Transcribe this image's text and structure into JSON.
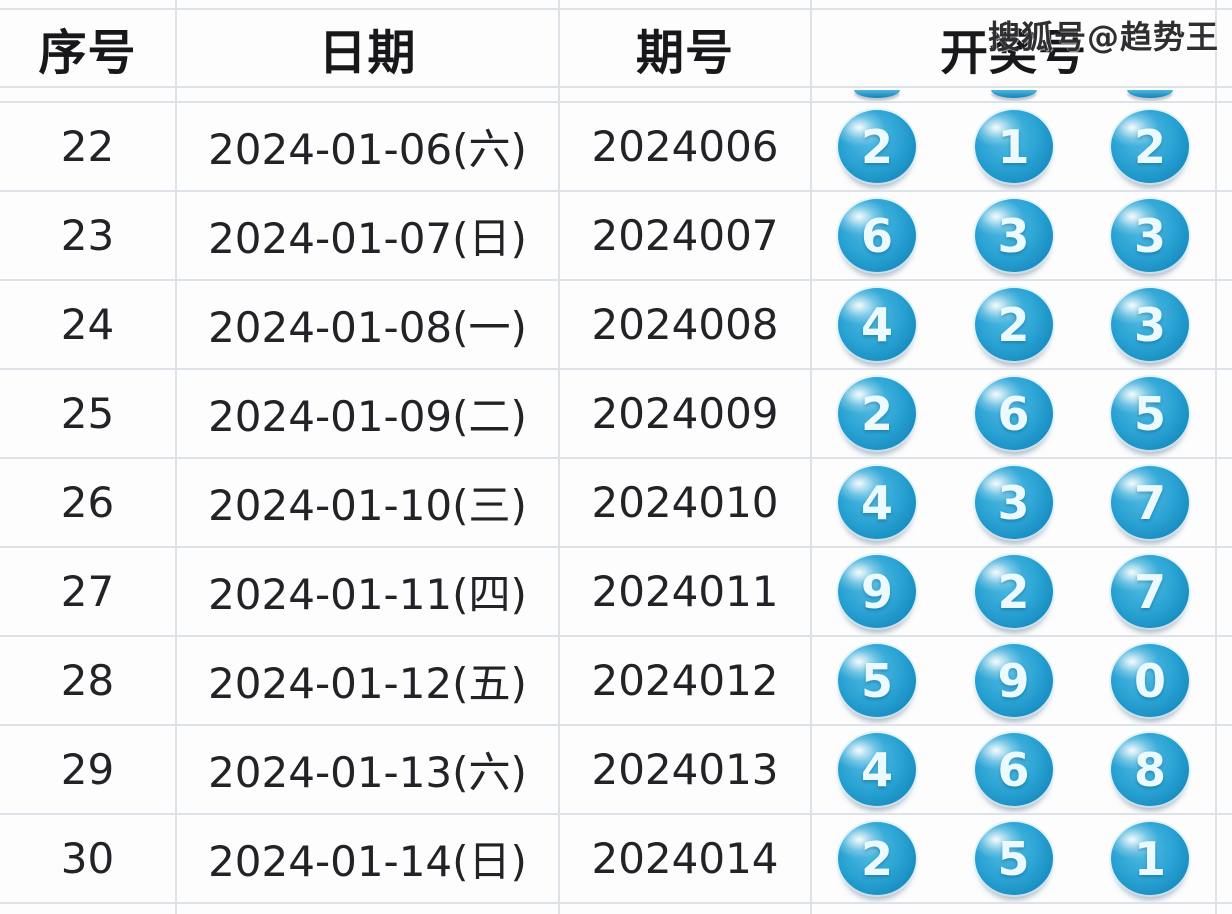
{
  "watermark": "搜狐号@趋势王",
  "table": {
    "headers": [
      {
        "key": "seq",
        "label": "序号"
      },
      {
        "key": "date",
        "label": "日期"
      },
      {
        "key": "issue",
        "label": "期号"
      },
      {
        "key": "balls",
        "label": "开奖号"
      }
    ],
    "top_partial_row": {
      "ball_sliver_count": 3
    },
    "rows": [
      {
        "seq": "22",
        "date": "2024-01-06(六)",
        "issue": "2024006",
        "balls": [
          "2",
          "1",
          "2"
        ]
      },
      {
        "seq": "23",
        "date": "2024-01-07(日)",
        "issue": "2024007",
        "balls": [
          "6",
          "3",
          "3"
        ]
      },
      {
        "seq": "24",
        "date": "2024-01-08(一)",
        "issue": "2024008",
        "balls": [
          "4",
          "2",
          "3"
        ]
      },
      {
        "seq": "25",
        "date": "2024-01-09(二)",
        "issue": "2024009",
        "balls": [
          "2",
          "6",
          "5"
        ]
      },
      {
        "seq": "26",
        "date": "2024-01-10(三)",
        "issue": "2024010",
        "balls": [
          "4",
          "3",
          "7"
        ]
      },
      {
        "seq": "27",
        "date": "2024-01-11(四)",
        "issue": "2024011",
        "balls": [
          "9",
          "2",
          "7"
        ]
      },
      {
        "seq": "28",
        "date": "2024-01-12(五)",
        "issue": "2024012",
        "balls": [
          "5",
          "9",
          "0"
        ]
      },
      {
        "seq": "29",
        "date": "2024-01-13(六)",
        "issue": "2024013",
        "balls": [
          "4",
          "6",
          "8"
        ]
      },
      {
        "seq": "30",
        "date": "2024-01-14(日)",
        "issue": "2024014",
        "balls": [
          "2",
          "5",
          "1"
        ]
      }
    ]
  },
  "colors": {
    "ball_main": "#2aa3d4",
    "ball_dark": "#1279ad",
    "ball_highlight": "#9adcf2",
    "ball_number": "#eafaff",
    "cell_bg": "#fdfdfe",
    "grid_line": "#dde2e9",
    "text": "#232327",
    "header_text": "#18181b",
    "watermark_text": "#2f2f31"
  }
}
